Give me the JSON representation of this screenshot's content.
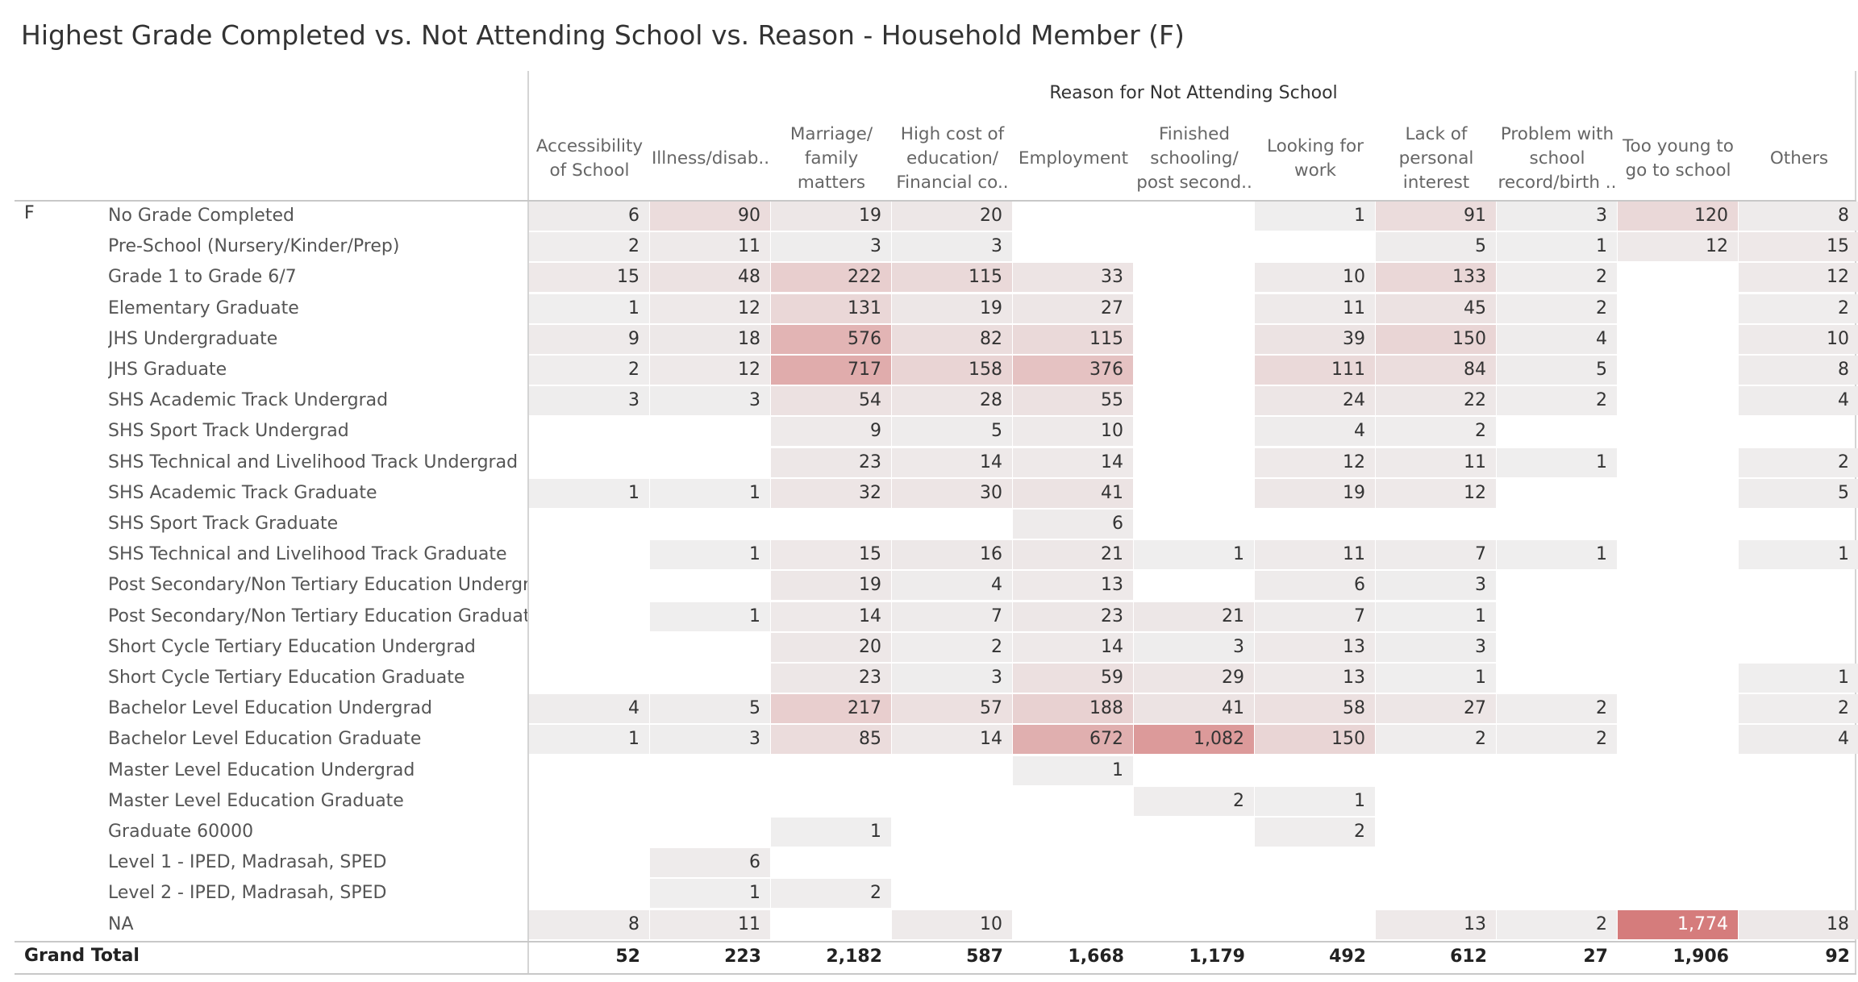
{
  "chart_data": {
    "type": "heatmap",
    "title": "Highest Grade Completed vs. Not Attending School vs. Reason - Household Member (F)",
    "column_header": "Reason for Not Attending School",
    "row_group": "F",
    "columns": [
      "Accessibility of School",
      "Illness/disab..",
      "Marriage/ family matters",
      "High cost of education/ Financial co..",
      "Employment",
      "Finished schooling/ post second..",
      "Looking for work",
      "Lack of personal interest",
      "Problem with school record/birth ..",
      "Too young to go to school",
      "Others"
    ],
    "rows": [
      {
        "label": "No Grade Completed",
        "values": [
          6,
          90,
          19,
          20,
          null,
          null,
          1,
          91,
          3,
          120,
          8
        ]
      },
      {
        "label": "Pre-School (Nursery/Kinder/Prep)",
        "values": [
          2,
          11,
          3,
          3,
          null,
          null,
          null,
          5,
          1,
          12,
          15
        ]
      },
      {
        "label": "Grade 1 to Grade 6/7",
        "values": [
          15,
          48,
          222,
          115,
          33,
          null,
          10,
          133,
          2,
          null,
          12
        ]
      },
      {
        "label": "Elementary Graduate",
        "values": [
          1,
          12,
          131,
          19,
          27,
          null,
          11,
          45,
          2,
          null,
          2
        ]
      },
      {
        "label": "JHS Undergraduate",
        "values": [
          9,
          18,
          576,
          82,
          115,
          null,
          39,
          150,
          4,
          null,
          10
        ]
      },
      {
        "label": "JHS Graduate",
        "values": [
          2,
          12,
          717,
          158,
          376,
          null,
          111,
          84,
          5,
          null,
          8
        ]
      },
      {
        "label": "SHS Academic Track Undergrad",
        "values": [
          3,
          3,
          54,
          28,
          55,
          null,
          24,
          22,
          2,
          null,
          4
        ]
      },
      {
        "label": "SHS Sport Track Undergrad",
        "values": [
          null,
          null,
          9,
          5,
          10,
          null,
          4,
          2,
          null,
          null,
          null
        ]
      },
      {
        "label": "SHS Technical and Livelihood Track Undergrad",
        "values": [
          null,
          null,
          23,
          14,
          14,
          null,
          12,
          11,
          1,
          null,
          2
        ]
      },
      {
        "label": "SHS Academic Track Graduate",
        "values": [
          1,
          1,
          32,
          30,
          41,
          null,
          19,
          12,
          null,
          null,
          5
        ]
      },
      {
        "label": "SHS Sport Track Graduate",
        "values": [
          null,
          null,
          null,
          null,
          6,
          null,
          null,
          null,
          null,
          null,
          null
        ]
      },
      {
        "label": "SHS Technical and Livelihood Track Graduate",
        "values": [
          null,
          1,
          15,
          16,
          21,
          1,
          11,
          7,
          1,
          null,
          1
        ]
      },
      {
        "label": "Post Secondary/Non Tertiary Education Undergr..",
        "values": [
          null,
          null,
          19,
          4,
          13,
          null,
          6,
          3,
          null,
          null,
          null
        ]
      },
      {
        "label": "Post Secondary/Non Tertiary Education Graduate",
        "values": [
          null,
          1,
          14,
          7,
          23,
          21,
          7,
          1,
          null,
          null,
          null
        ]
      },
      {
        "label": "Short Cycle Tertiary Education Undergrad",
        "values": [
          null,
          null,
          20,
          2,
          14,
          3,
          13,
          3,
          null,
          null,
          null
        ]
      },
      {
        "label": "Short Cycle Tertiary Education Graduate",
        "values": [
          null,
          null,
          23,
          3,
          59,
          29,
          13,
          1,
          null,
          null,
          1
        ]
      },
      {
        "label": "Bachelor Level Education Undergrad",
        "values": [
          4,
          5,
          217,
          57,
          188,
          41,
          58,
          27,
          2,
          null,
          2
        ]
      },
      {
        "label": "Bachelor Level Education Graduate",
        "values": [
          1,
          3,
          85,
          14,
          672,
          1082,
          150,
          2,
          2,
          null,
          4
        ]
      },
      {
        "label": "Master Level Education Undergrad",
        "values": [
          null,
          null,
          null,
          null,
          1,
          null,
          null,
          null,
          null,
          null,
          null
        ]
      },
      {
        "label": "Master Level Education Graduate",
        "values": [
          null,
          null,
          null,
          null,
          null,
          2,
          1,
          null,
          null,
          null,
          null
        ]
      },
      {
        "label": "Graduate 60000",
        "values": [
          null,
          null,
          1,
          null,
          null,
          null,
          2,
          null,
          null,
          null,
          null
        ]
      },
      {
        "label": "Level 1 - IPED, Madrasah, SPED",
        "values": [
          null,
          6,
          null,
          null,
          null,
          null,
          null,
          null,
          null,
          null,
          null
        ]
      },
      {
        "label": "Level 2 - IPED, Madrasah, SPED",
        "values": [
          null,
          1,
          2,
          null,
          null,
          null,
          null,
          null,
          null,
          null,
          null
        ]
      },
      {
        "label": "NA",
        "values": [
          8,
          11,
          null,
          10,
          null,
          null,
          null,
          13,
          2,
          1774,
          18
        ]
      }
    ],
    "grand_total_label": "Grand Total",
    "grand_totals": [
      52,
      223,
      2182,
      587,
      1668,
      1179,
      492,
      612,
      27,
      1906,
      92
    ],
    "color_scale": {
      "low": "#efefef",
      "high": "#d57c7c"
    }
  }
}
